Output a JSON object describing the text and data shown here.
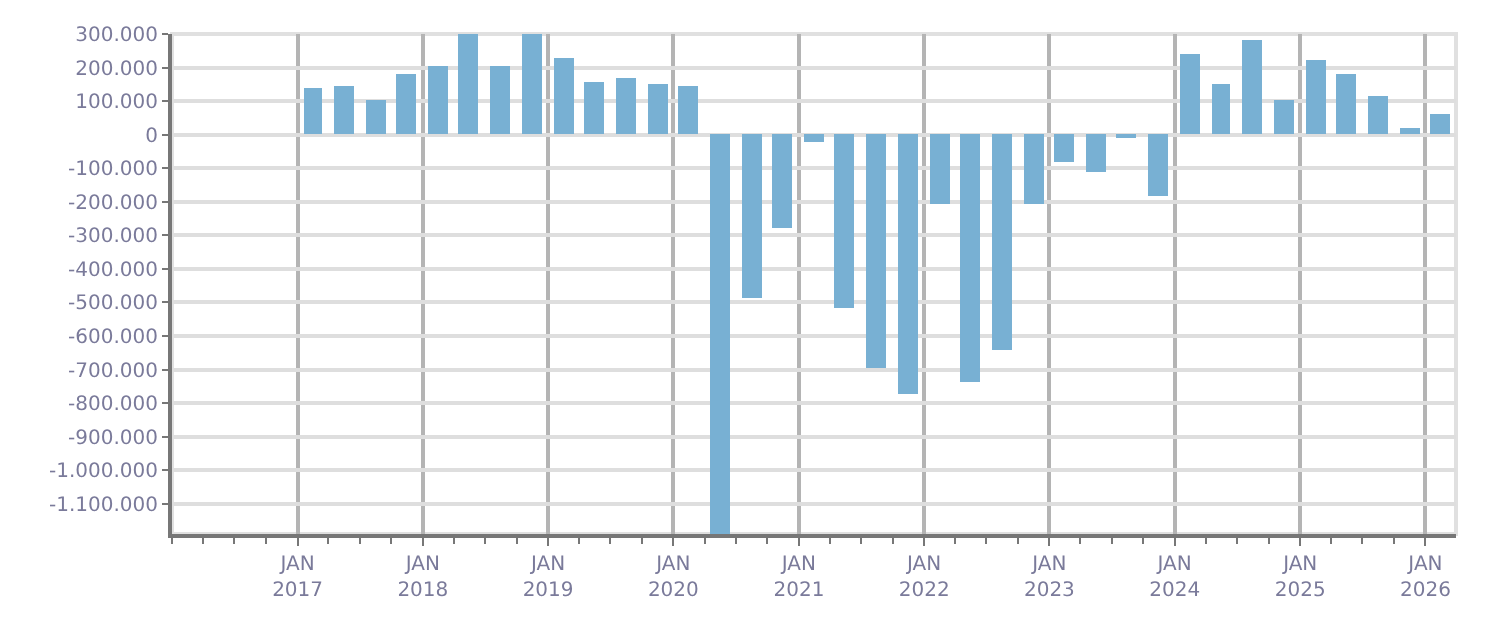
{
  "chart_data": {
    "type": "bar",
    "color": "#78b0d3",
    "grid": true,
    "x": [
      "2017-02-15",
      "2017-05-15",
      "2017-08-15",
      "2017-11-15",
      "2018-02-15",
      "2018-05-15",
      "2018-08-15",
      "2018-11-15",
      "2019-02-15",
      "2019-05-15",
      "2019-08-15",
      "2019-11-15",
      "2020-02-15",
      "2020-05-15",
      "2020-08-15",
      "2020-11-15",
      "2021-02-15",
      "2021-05-15",
      "2021-08-15",
      "2021-11-15",
      "2022-02-15",
      "2022-05-15",
      "2022-08-15",
      "2022-11-15",
      "2023-02-15",
      "2023-05-15",
      "2023-08-15",
      "2023-11-15",
      "2024-02-15",
      "2024-05-15",
      "2024-08-15",
      "2024-11-15",
      "2025-02-15",
      "2025-05-15",
      "2025-08-15",
      "2025-11-15",
      "2026-02-15"
    ],
    "values": [
      139000,
      144000,
      106000,
      178000,
      206000,
      300000,
      206000,
      300000,
      228000,
      156000,
      167000,
      150000,
      144000,
      -1190000,
      -487000,
      -281000,
      -20000,
      -515000,
      -698000,
      -770000,
      -204000,
      -737000,
      -643000,
      -209000,
      -81000,
      -109000,
      -9000,
      -181000,
      239000,
      150000,
      283000,
      106000,
      222000,
      183000,
      117000,
      17000,
      61000
    ],
    "xlim": [
      "2016-01-01",
      "2026-03-31"
    ],
    "xticks": [
      {
        "value": "2017-01-01",
        "label": "JAN\n2017"
      },
      {
        "value": "2018-01-01",
        "label": "JAN\n2018"
      },
      {
        "value": "2019-01-01",
        "label": "JAN\n2019"
      },
      {
        "value": "2020-01-01",
        "label": "JAN\n2020"
      },
      {
        "value": "2021-01-01",
        "label": "JAN\n2021"
      },
      {
        "value": "2022-01-01",
        "label": "JAN\n2022"
      },
      {
        "value": "2023-01-01",
        "label": "JAN\n2023"
      },
      {
        "value": "2024-01-01",
        "label": "JAN\n2024"
      },
      {
        "value": "2025-01-01",
        "label": "JAN\n2025"
      },
      {
        "value": "2026-01-01",
        "label": "JAN\n2026"
      }
    ],
    "ylim": [
      -1190000,
      300000
    ],
    "yticks": [
      {
        "value": 300000,
        "label": "300.000"
      },
      {
        "value": 200000,
        "label": "200.000"
      },
      {
        "value": 100000,
        "label": "100.000"
      },
      0,
      {
        "value": -100000,
        "label": "-100.000"
      },
      {
        "value": -200000,
        "label": "-200.000"
      },
      {
        "value": -300000,
        "label": "-300.000"
      },
      {
        "value": -400000,
        "label": "-400.000"
      },
      {
        "value": -500000,
        "label": "-500.000"
      },
      {
        "value": -600000,
        "label": "-600.000"
      },
      {
        "value": -700000,
        "label": "-700.000"
      },
      {
        "value": -800000,
        "label": "-800.000"
      },
      {
        "value": -900000,
        "label": "-900.000"
      },
      {
        "value": -1000000,
        "label": "-1.000.000"
      },
      {
        "value": -1100000,
        "label": "-1.100.000"
      }
    ]
  }
}
